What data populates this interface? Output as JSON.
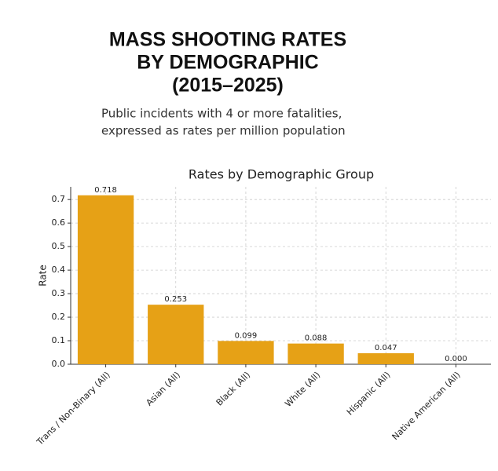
{
  "chart_data": {
    "type": "bar",
    "title": [
      "MASS SHOOTING RATES",
      "BY DEMOGRAPHIC",
      "(2015–2025)"
    ],
    "subtitle": [
      "Public incidents with 4 or more fatalities,",
      "expressed as rates per million population"
    ],
    "chart_title": "Rates by Demographic Group",
    "ylabel": "Rate",
    "categories": [
      "Trans / Non-Binary (All)",
      "Asian (All)",
      "Black (All)",
      "White (All)",
      "Hispanic (All)",
      "Native American (All)"
    ],
    "values": [
      0.718,
      0.253,
      0.099,
      0.088,
      0.047,
      0
    ],
    "value_labels": [
      "0.718",
      "0.253",
      "0.099",
      "0.088",
      "0.047",
      "0.000"
    ],
    "color": "#e6a116",
    "ylim": [
      0,
      0.754
    ],
    "yticks": [
      {
        "value": 0,
        "label": "0.0"
      },
      0.1,
      0.2,
      0.3,
      0.4,
      0.5,
      0.6,
      0.7
    ],
    "grid": true
  }
}
